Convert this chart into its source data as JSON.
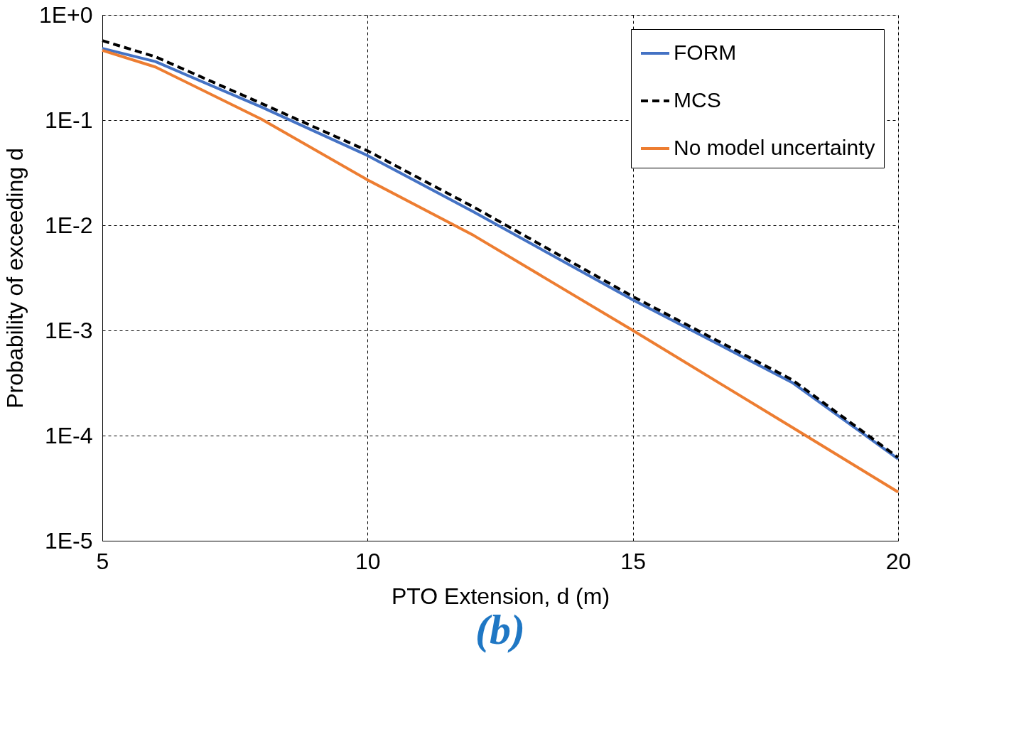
{
  "chart_data": {
    "type": "line",
    "xlabel": "PTO Extension, d (m)",
    "ylabel": "Probability of exceeding d",
    "annotations": [
      "(b)"
    ],
    "log": "y",
    "grid": true,
    "legend": "top right",
    "xlim": [
      5,
      20
    ],
    "xticks": [
      5,
      10,
      15,
      20
    ],
    "ylim": [
      1e-05,
      1
    ],
    "yticks": [
      {
        "value": 1,
        "label": "1E+0"
      },
      {
        "value": 0.1,
        "label": "1E-1"
      },
      {
        "value": 0.01,
        "label": "1E-2"
      },
      {
        "value": 0.001,
        "label": "1E-3"
      },
      {
        "value": 0.0001,
        "label": "1E-4"
      },
      {
        "value": 1e-05,
        "label": "1E-5"
      }
    ],
    "x": [
      5,
      6,
      8,
      10,
      12,
      15,
      18,
      20
    ],
    "series": [
      {
        "name": "FORM",
        "color": "#4472c4",
        "line_style": "solid",
        "values": [
          0.48,
          0.36,
          0.133,
          0.046,
          0.0134,
          0.00195,
          0.00032,
          6e-05
        ]
      },
      {
        "name": "MCS",
        "color": "#000000",
        "line_style": "dashed",
        "values": [
          0.57,
          0.4,
          0.144,
          0.051,
          0.0149,
          0.0021,
          0.00034,
          6.2e-05
        ]
      },
      {
        "name": "No model uncertainty",
        "color": "#ed7d31",
        "line_style": "solid",
        "values": [
          0.46,
          0.32,
          0.102,
          0.027,
          0.008,
          0.001,
          0.00012,
          2.9e-05
        ]
      }
    ]
  }
}
